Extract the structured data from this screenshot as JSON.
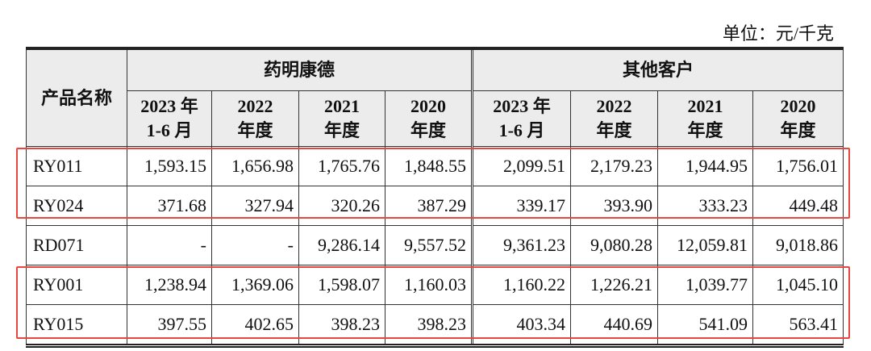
{
  "unit": "单位：元/千克",
  "table": {
    "row_header": "产品名称",
    "groups": [
      "药明康德",
      "其他客户"
    ],
    "columns": [
      "2023 年\n1-6 月",
      "2022\n年度",
      "2021\n年度",
      "2020\n年度",
      "2023 年\n1-6 月",
      "2022\n年度",
      "2021\n年度",
      "2020\n年度"
    ],
    "rows": [
      [
        "RY011",
        "1,593.15",
        "1,656.98",
        "1,765.76",
        "1,848.55",
        "2,099.51",
        "2,179.23",
        "1,944.95",
        "1,756.01"
      ],
      [
        "RY024",
        "371.68",
        "327.94",
        "320.26",
        "387.29",
        "339.17",
        "393.90",
        "333.23",
        "449.48"
      ],
      [
        "RD071",
        "-",
        "-",
        "9,286.14",
        "9,557.52",
        "9,361.23",
        "9,080.28",
        "12,059.81",
        "9,018.86"
      ],
      [
        "RY001",
        "1,238.94",
        "1,369.06",
        "1,598.07",
        "1,160.03",
        "1,160.22",
        "1,226.21",
        "1,039.77",
        "1,045.10"
      ],
      [
        "RY015",
        "397.55",
        "402.65",
        "398.23",
        "398.23",
        "403.34",
        "440.69",
        "541.09",
        "563.41"
      ]
    ]
  }
}
